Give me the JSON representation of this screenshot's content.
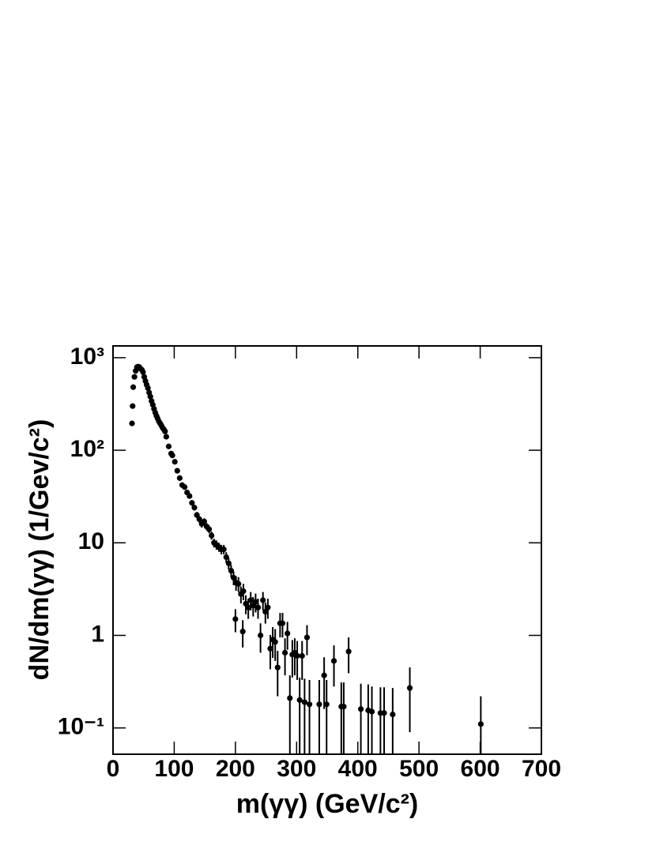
{
  "chart_data": {
    "type": "scatter",
    "xlabel": "m(γγ) (GeV/c²)",
    "ylabel": "dN/dm(γγ) (1/Gev/c²)",
    "color": "#000000",
    "log_y": true,
    "xlim": [
      0,
      700
    ],
    "xticks": [
      0,
      100,
      200,
      300,
      400,
      500,
      600,
      700
    ],
    "ylim": [
      0.052,
      1340
    ],
    "yticks": [
      {
        "value": 0.1,
        "label": "10⁻¹"
      },
      1,
      10,
      {
        "value": 100,
        "label": "10²"
      },
      {
        "value": 1000,
        "label": "10³"
      }
    ],
    "x": [
      31,
      32,
      33,
      35,
      37,
      39,
      41,
      43,
      45,
      47,
      49,
      51,
      53,
      55,
      57,
      59,
      61,
      63,
      65,
      67,
      69,
      71,
      73,
      75,
      77,
      79,
      81,
      83,
      85,
      87,
      91,
      95,
      97,
      101,
      105,
      109,
      113,
      117,
      121,
      125,
      129,
      133,
      137,
      141,
      145,
      149,
      153,
      157,
      161,
      165,
      169,
      173,
      177,
      181,
      185,
      189,
      193,
      197,
      200,
      201,
      205,
      209,
      212,
      213,
      217,
      221,
      225,
      229,
      233,
      237,
      241,
      245,
      249,
      253,
      257,
      261,
      265,
      269,
      273,
      277,
      281,
      285,
      289,
      293,
      297,
      301,
      305,
      309,
      313,
      317,
      321,
      337,
      345,
      349,
      361,
      373,
      377,
      385,
      405,
      417,
      423,
      437,
      443,
      457,
      485,
      601
    ],
    "values": [
      195,
      300,
      480,
      620,
      720,
      790,
      800,
      790,
      760,
      740,
      700,
      620,
      560,
      510,
      470,
      420,
      380,
      340,
      310,
      280,
      255,
      235,
      220,
      205,
      195,
      185,
      175,
      168,
      160,
      140,
      110,
      92,
      88,
      75,
      60,
      50,
      42,
      40,
      35,
      32,
      27,
      24,
      20,
      18,
      16,
      17,
      15,
      14,
      12,
      10,
      9.5,
      9,
      8.5,
      8.5,
      7,
      6,
      5,
      4.2,
      1.5,
      3.7,
      3.6,
      2.8,
      1.1,
      3,
      2.2,
      2,
      2.4,
      2.1,
      2.3,
      2,
      1,
      2.4,
      1.8,
      2,
      0.72,
      0.9,
      0.85,
      0.45,
      1.35,
      1.35,
      0.65,
      1.05,
      0.21,
      0.62,
      0.65,
      0.6,
      0.2,
      0.6,
      0.19,
      0.95,
      0.18,
      0.18,
      0.37,
      0.18,
      0.53,
      0.17,
      0.17,
      0.67,
      0.16,
      0.155,
      0.15,
      0.145,
      0.145,
      0.14,
      0.27,
      0.11
    ],
    "errors": [
      4.8,
      6,
      7.6,
      8.6,
      9.3,
      9.7,
      9.8,
      9.7,
      9.5,
      9.4,
      9.2,
      8.6,
      8.2,
      7.8,
      7.5,
      7.1,
      6.8,
      6.4,
      6.1,
      5.8,
      5.5,
      5.3,
      5.1,
      5,
      4.8,
      4.7,
      4.6,
      4.5,
      4.4,
      4.1,
      3.6,
      3.3,
      3.2,
      3,
      2.7,
      2.4,
      2.2,
      2.2,
      2,
      2,
      1.8,
      1.7,
      1.5,
      1.5,
      1.4,
      1.4,
      1.3,
      1.3,
      1.2,
      1.1,
      1.1,
      1,
      1,
      1,
      0.92,
      0.85,
      0.77,
      0.71,
      0.42,
      0.67,
      0.66,
      0.58,
      0.36,
      0.6,
      0.51,
      0.49,
      0.54,
      0.5,
      0.53,
      0.49,
      0.35,
      0.54,
      0.46,
      0.49,
      0.29,
      0.33,
      0.32,
      0.23,
      0.4,
      0.4,
      0.28,
      0.35,
      0.16,
      0.27,
      0.28,
      0.27,
      0.15,
      0.27,
      0.15,
      0.34,
      0.15,
      0.15,
      0.21,
      0.15,
      0.25,
      0.14,
      0.14,
      0.28,
      0.14,
      0.14,
      0.13,
      0.13,
      0.13,
      0.13,
      0.18,
      0.11
    ]
  }
}
